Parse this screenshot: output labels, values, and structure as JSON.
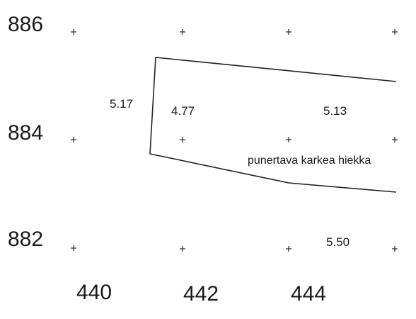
{
  "y_axis_labels": [
    "886",
    "884",
    "882"
  ],
  "x_axis_labels": [
    "440",
    "442",
    "444"
  ],
  "values": {
    "left_edge": "5.17",
    "inner_left": "4.77",
    "inner_right": "5.13",
    "bottom_right": "5.50"
  },
  "area_label": "punertava karkea hiekka",
  "colors": {
    "ink": "#1a1a1a",
    "background": "#ffffff"
  }
}
